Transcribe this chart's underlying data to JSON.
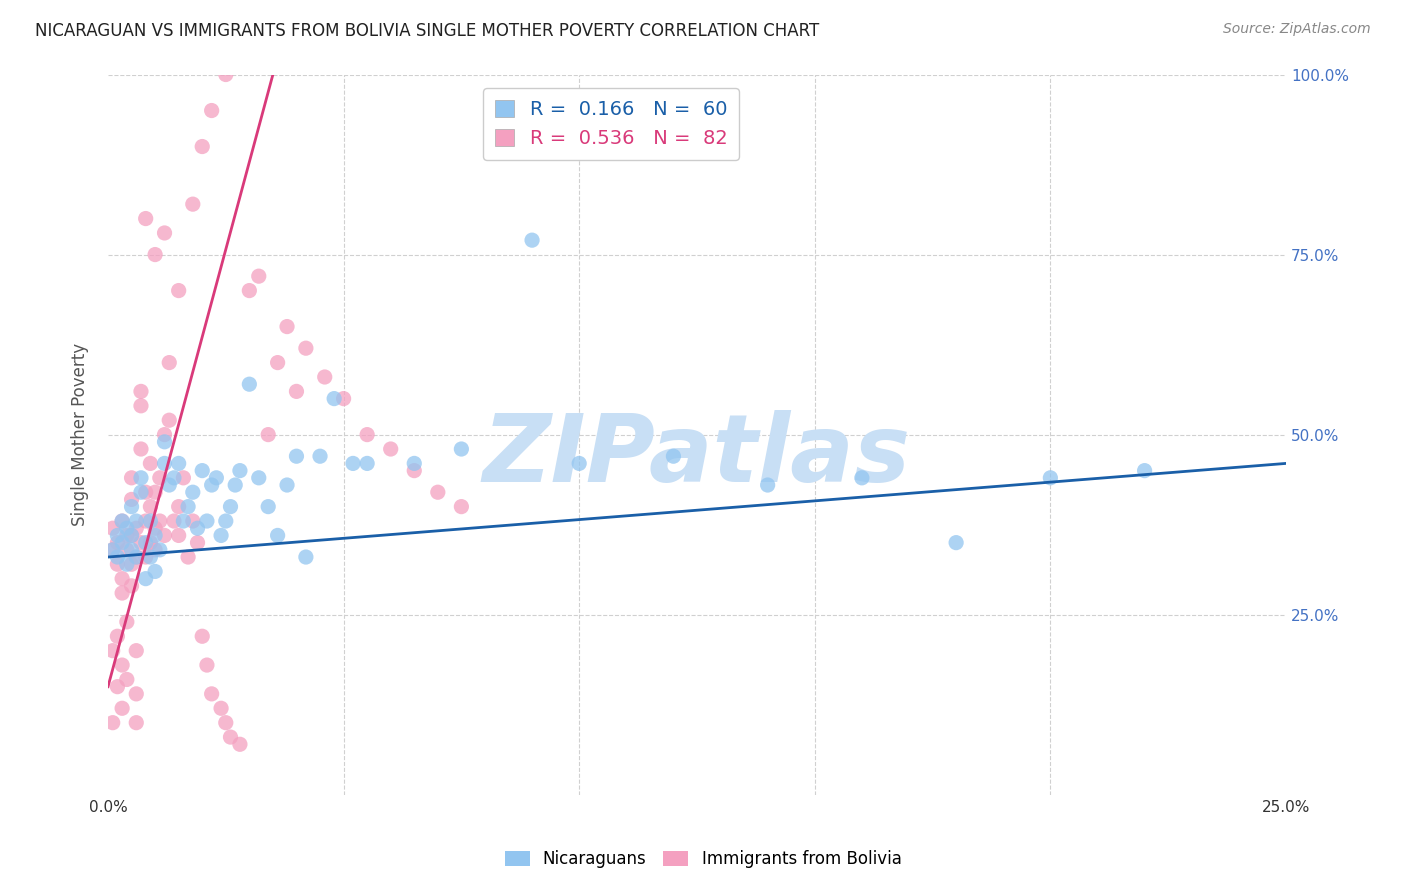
{
  "title": "NICARAGUAN VS IMMIGRANTS FROM BOLIVIA SINGLE MOTHER POVERTY CORRELATION CHART",
  "source": "Source: ZipAtlas.com",
  "ylabel": "Single Mother Poverty",
  "blue_color": "#92c5f0",
  "pink_color": "#f4a0c0",
  "blue_line_color": "#1a5fa8",
  "pink_line_color": "#d93a7a",
  "watermark_text": "ZIPatlas",
  "watermark_color": "#c8dff5",
  "xlim": [
    0.0,
    0.25
  ],
  "ylim": [
    0.0,
    1.0
  ],
  "legend_blue_r": "0.166",
  "legend_blue_n": "60",
  "legend_pink_r": "0.536",
  "legend_pink_n": "82",
  "blue_line_x0": 0.0,
  "blue_line_y0": 0.33,
  "blue_line_x1": 0.25,
  "blue_line_y1": 0.46,
  "pink_line_x0": 0.0,
  "pink_line_y0": 0.15,
  "pink_line_x1": 0.035,
  "pink_line_y1": 1.0,
  "blue_scatter_x": [
    0.001,
    0.002,
    0.002,
    0.003,
    0.003,
    0.004,
    0.004,
    0.005,
    0.005,
    0.005,
    0.006,
    0.006,
    0.007,
    0.007,
    0.008,
    0.008,
    0.009,
    0.009,
    0.01,
    0.01,
    0.011,
    0.012,
    0.012,
    0.013,
    0.014,
    0.015,
    0.016,
    0.017,
    0.018,
    0.019,
    0.02,
    0.021,
    0.022,
    0.023,
    0.024,
    0.025,
    0.026,
    0.027,
    0.028,
    0.03,
    0.032,
    0.034,
    0.036,
    0.038,
    0.04,
    0.042,
    0.045,
    0.048,
    0.052,
    0.055,
    0.065,
    0.075,
    0.09,
    0.1,
    0.12,
    0.14,
    0.16,
    0.18,
    0.2,
    0.22
  ],
  "blue_scatter_y": [
    0.34,
    0.36,
    0.33,
    0.38,
    0.35,
    0.32,
    0.37,
    0.34,
    0.4,
    0.36,
    0.33,
    0.38,
    0.42,
    0.44,
    0.35,
    0.3,
    0.33,
    0.38,
    0.36,
    0.31,
    0.34,
    0.46,
    0.49,
    0.43,
    0.44,
    0.46,
    0.38,
    0.4,
    0.42,
    0.37,
    0.45,
    0.38,
    0.43,
    0.44,
    0.36,
    0.38,
    0.4,
    0.43,
    0.45,
    0.57,
    0.44,
    0.4,
    0.36,
    0.43,
    0.47,
    0.33,
    0.47,
    0.55,
    0.46,
    0.46,
    0.46,
    0.48,
    0.77,
    0.46,
    0.47,
    0.43,
    0.44,
    0.35,
    0.44,
    0.45
  ],
  "pink_scatter_x": [
    0.001,
    0.001,
    0.001,
    0.001,
    0.002,
    0.002,
    0.002,
    0.002,
    0.003,
    0.003,
    0.003,
    0.003,
    0.003,
    0.004,
    0.004,
    0.004,
    0.004,
    0.005,
    0.005,
    0.005,
    0.005,
    0.005,
    0.006,
    0.006,
    0.006,
    0.006,
    0.006,
    0.007,
    0.007,
    0.007,
    0.007,
    0.008,
    0.008,
    0.008,
    0.009,
    0.009,
    0.009,
    0.01,
    0.01,
    0.01,
    0.011,
    0.011,
    0.012,
    0.012,
    0.013,
    0.013,
    0.014,
    0.015,
    0.015,
    0.016,
    0.017,
    0.018,
    0.019,
    0.02,
    0.021,
    0.022,
    0.024,
    0.025,
    0.026,
    0.028,
    0.03,
    0.032,
    0.034,
    0.036,
    0.038,
    0.04,
    0.042,
    0.046,
    0.05,
    0.055,
    0.06,
    0.065,
    0.07,
    0.075,
    0.008,
    0.01,
    0.012,
    0.015,
    0.018,
    0.02,
    0.022,
    0.025
  ],
  "pink_scatter_y": [
    0.34,
    0.37,
    0.2,
    0.1,
    0.32,
    0.35,
    0.22,
    0.15,
    0.3,
    0.28,
    0.38,
    0.18,
    0.12,
    0.34,
    0.36,
    0.24,
    0.16,
    0.36,
    0.32,
    0.29,
    0.41,
    0.44,
    0.33,
    0.37,
    0.2,
    0.14,
    0.1,
    0.35,
    0.48,
    0.54,
    0.56,
    0.38,
    0.33,
    0.42,
    0.35,
    0.4,
    0.46,
    0.34,
    0.37,
    0.42,
    0.38,
    0.44,
    0.5,
    0.36,
    0.52,
    0.6,
    0.38,
    0.36,
    0.4,
    0.44,
    0.33,
    0.38,
    0.35,
    0.22,
    0.18,
    0.14,
    0.12,
    0.1,
    0.08,
    0.07,
    0.7,
    0.72,
    0.5,
    0.6,
    0.65,
    0.56,
    0.62,
    0.58,
    0.55,
    0.5,
    0.48,
    0.45,
    0.42,
    0.4,
    0.8,
    0.75,
    0.78,
    0.7,
    0.82,
    0.9,
    0.95,
    1.0
  ]
}
